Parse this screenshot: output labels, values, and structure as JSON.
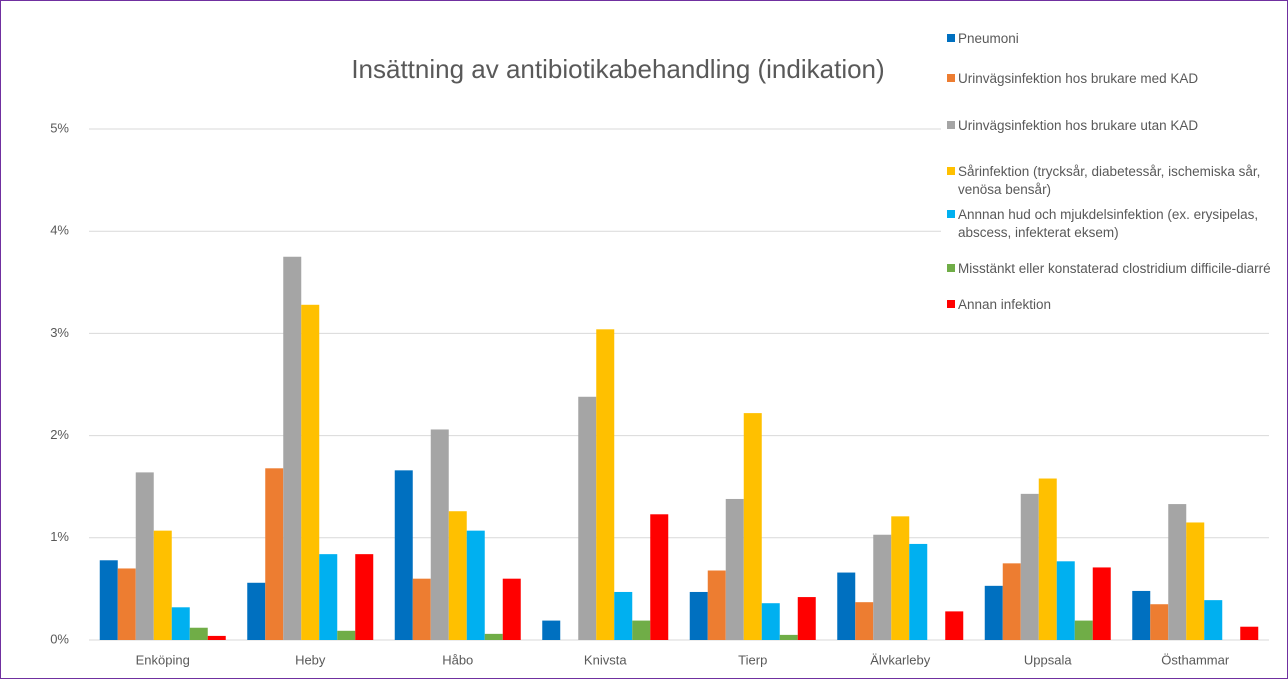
{
  "chart_data": {
    "type": "bar",
    "title": "Insättning av antibiotikabehandling (indikation)",
    "categories": [
      "Enköping",
      "Heby",
      "Håbo",
      "Knivsta",
      "Tierp",
      "Älvkarleby",
      "Uppsala",
      "Östhammar"
    ],
    "series": [
      {
        "name": "Pneumoni",
        "color": "#0070c0",
        "values": [
          0.78,
          0.56,
          1.66,
          0.19,
          0.47,
          0.66,
          0.53,
          0.48
        ]
      },
      {
        "name": "Urinvägsinfektion hos brukare med KAD",
        "color": "#ed7d31",
        "values": [
          0.7,
          1.68,
          0.6,
          0,
          0.68,
          0.37,
          0.75,
          0.35
        ]
      },
      {
        "name": "Urinvägsinfektion hos brukare utan KAD",
        "color": "#a5a5a5",
        "values": [
          1.64,
          3.75,
          2.06,
          2.38,
          1.38,
          1.03,
          1.43,
          1.33
        ]
      },
      {
        "name": "Sårinfektion (trycksår, diabetessår, ischemiska sår, venösa bensår)",
        "color": "#ffc000",
        "values": [
          1.07,
          3.28,
          1.26,
          3.04,
          2.22,
          1.21,
          1.58,
          1.15
        ]
      },
      {
        "name": "Annnan hud och mjukdelsinfektion (ex. erysipelas, abscess, infekterat eksem)",
        "color": "#00b0f0",
        "values": [
          0.32,
          0.84,
          1.07,
          0.47,
          0.36,
          0.94,
          0.77,
          0.39
        ]
      },
      {
        "name": "Misstänkt eller konstaterad clostridium difficile-diarré",
        "color": "#70ad47",
        "values": [
          0.12,
          0.09,
          0.06,
          0.19,
          0.05,
          0,
          0.19,
          0
        ]
      },
      {
        "name": "Annan infektion",
        "color": "#ff0000",
        "values": [
          0.04,
          0.84,
          0.6,
          1.23,
          0.42,
          0.28,
          0.71,
          0.13
        ]
      }
    ],
    "ylim": [
      0,
      5
    ],
    "yticks": [
      {
        "value": 0,
        "label": "0%"
      },
      {
        "value": 1,
        "label": "1%"
      },
      {
        "value": 2,
        "label": "2%"
      },
      {
        "value": 3,
        "label": "3%"
      },
      {
        "value": 4,
        "label": "4%"
      },
      {
        "value": 5,
        "label": "5%"
      }
    ],
    "grid": true,
    "legend": "top-right"
  }
}
